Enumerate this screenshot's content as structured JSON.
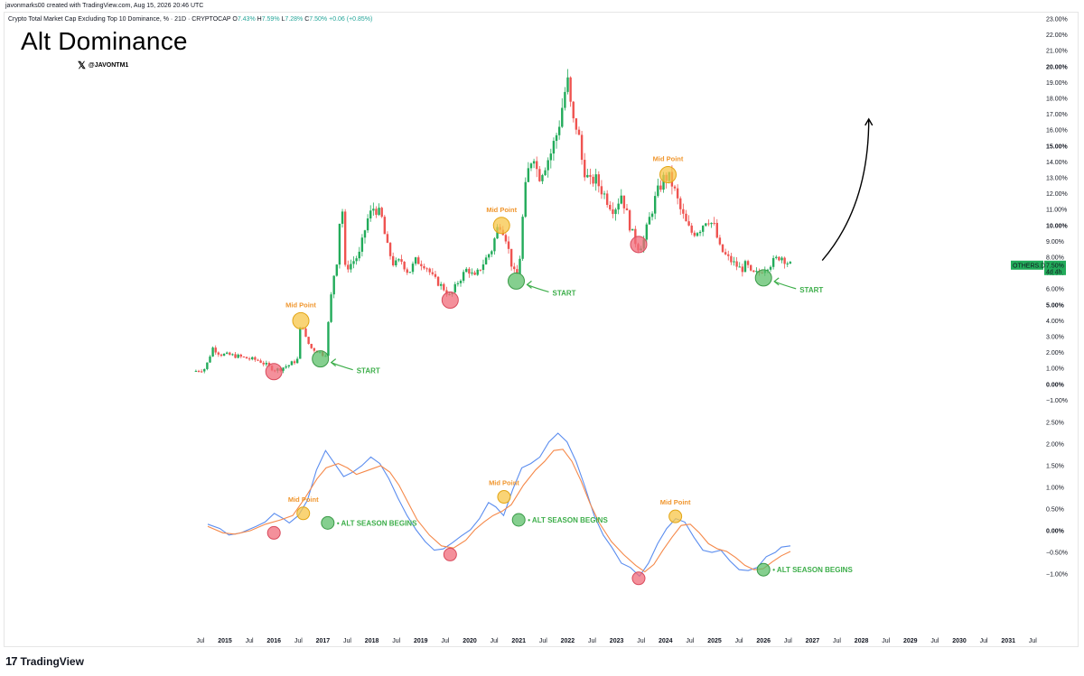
{
  "credit": "javonmarks00 created with TradingView.com, Aug 15, 2026 20:46 UTC",
  "symbol": {
    "name": "Crypto Total Market Cap Excluding Top 10 Dominance, % · 21D · CRYPTOCAP",
    "o_label": "O",
    "o": "7.43%",
    "h_label": "H",
    "h": "7.59%",
    "l_label": "L",
    "l": "7.28%",
    "c_label": "C",
    "c": "7.50%",
    "change": "+0.06 (+0.85%)"
  },
  "title": "Alt Dominance",
  "handle": "@JAVONTM1",
  "handle_icon": "x-logo-icon",
  "price_tag": {
    "symbol": "OTHERS.D",
    "value": "7.50%",
    "countdown": "4d 4h"
  },
  "footer": {
    "logo_mark": "17",
    "logo_text": "TradingView"
  },
  "colors": {
    "up": "#26a69a",
    "up_body": "#22ab5a",
    "down": "#ef5350",
    "fast_line": "#5b8def",
    "slow_line": "#f5894a",
    "mid_marker": "#f7c548",
    "low_marker": "#f06b7a",
    "start_marker": "#5cbf6a",
    "annotation_green": "#3dae4a",
    "annotation_orange": "#f0962e"
  },
  "chart_data": [
    {
      "type": "candlestick",
      "title": "Alt Dominance",
      "series_name": "OTHERS.D",
      "y_unit": "%",
      "ylim": [
        -1,
        23
      ],
      "y_ticks": [
        "23.00%",
        "22.00%",
        "21.00%",
        "20.00%",
        "19.00%",
        "18.00%",
        "17.00%",
        "16.00%",
        "15.00%",
        "14.00%",
        "13.00%",
        "12.00%",
        "11.00%",
        "10.00%",
        "9.00%",
        "8.00%",
        "7.00%",
        "6.00%",
        "5.00%",
        "4.00%",
        "3.00%",
        "2.00%",
        "1.00%",
        "0.00%",
        "−1.00%"
      ],
      "y_tick_values": [
        23,
        22,
        21,
        20,
        19,
        18,
        17,
        16,
        15,
        14,
        13,
        12,
        11,
        10,
        9,
        8,
        7,
        6,
        5,
        4,
        3,
        2,
        1,
        0,
        -1
      ],
      "y_bold_values": [
        20,
        15,
        10,
        5,
        0
      ],
      "x_ticks": [
        "Jul",
        "2015",
        "Jul",
        "2016",
        "Jul",
        "2017",
        "Jul",
        "2018",
        "Jul",
        "2019",
        "Jul",
        "2020",
        "Jul",
        "2021",
        "Jul",
        "2022",
        "Jul",
        "2023",
        "Jul",
        "2024",
        "Jul",
        "2025",
        "Jul",
        "2026",
        "Jul",
        "2027",
        "Jul",
        "2028",
        "Jul",
        "2029",
        "Jul",
        "2030",
        "Jul",
        "2031",
        "Jul"
      ],
      "x_tick_years": [
        2014.5,
        2015,
        2015.5,
        2016,
        2016.5,
        2017,
        2017.5,
        2018,
        2018.5,
        2019,
        2019.5,
        2020,
        2020.5,
        2021,
        2021.5,
        2022,
        2022.5,
        2023,
        2023.5,
        2024,
        2024.5,
        2025,
        2025.5,
        2026,
        2026.5,
        2027,
        2027.5,
        2028,
        2028.5,
        2029,
        2029.5,
        2030,
        2030.5,
        2031,
        2031.5
      ],
      "close_path": [
        [
          2014.35,
          0.8
        ],
        [
          2014.6,
          1.0
        ],
        [
          2014.75,
          2.3
        ],
        [
          2014.9,
          1.9
        ],
        [
          2015.2,
          1.8
        ],
        [
          2015.5,
          1.6
        ],
        [
          2015.7,
          1.5
        ],
        [
          2015.9,
          1.1
        ],
        [
          2016.05,
          0.9
        ],
        [
          2016.3,
          1.2
        ],
        [
          2016.5,
          1.6
        ],
        [
          2016.55,
          4.2
        ],
        [
          2016.65,
          2.9
        ],
        [
          2016.75,
          2.3
        ],
        [
          2016.95,
          2.0
        ],
        [
          2017.05,
          1.8
        ],
        [
          2017.1,
          3.5
        ],
        [
          2017.2,
          6.5
        ],
        [
          2017.3,
          8.0
        ],
        [
          2017.38,
          12.3
        ],
        [
          2017.45,
          7.3
        ],
        [
          2017.55,
          7.5
        ],
        [
          2017.75,
          8.2
        ],
        [
          2017.9,
          10.3
        ],
        [
          2018.05,
          11.2
        ],
        [
          2018.2,
          10.5
        ],
        [
          2018.3,
          8.8
        ],
        [
          2018.45,
          7.5
        ],
        [
          2018.6,
          7.8
        ],
        [
          2018.75,
          7.0
        ],
        [
          2018.9,
          7.8
        ],
        [
          2019.1,
          7.5
        ],
        [
          2019.25,
          6.7
        ],
        [
          2019.45,
          6.1
        ],
        [
          2019.6,
          5.5
        ],
        [
          2019.75,
          6.4
        ],
        [
          2019.95,
          7.3
        ],
        [
          2020.1,
          6.7
        ],
        [
          2020.25,
          7.5
        ],
        [
          2020.45,
          8.5
        ],
        [
          2020.6,
          10.2
        ],
        [
          2020.72,
          9.5
        ],
        [
          2020.85,
          7.6
        ],
        [
          2020.95,
          6.6
        ],
        [
          2021.05,
          8.5
        ],
        [
          2021.1,
          11.6
        ],
        [
          2021.2,
          13.5
        ],
        [
          2021.3,
          14.7
        ],
        [
          2021.4,
          13.0
        ],
        [
          2021.5,
          13.6
        ],
        [
          2021.65,
          14.5
        ],
        [
          2021.8,
          16.0
        ],
        [
          2021.95,
          18.5
        ],
        [
          2022.0,
          19.0
        ],
        [
          2022.1,
          16.5
        ],
        [
          2022.2,
          16.2
        ],
        [
          2022.3,
          13.9
        ],
        [
          2022.45,
          12.6
        ],
        [
          2022.55,
          13.0
        ],
        [
          2022.7,
          12.2
        ],
        [
          2022.85,
          11.4
        ],
        [
          2022.95,
          11.0
        ],
        [
          2023.1,
          12.0
        ],
        [
          2023.25,
          10.2
        ],
        [
          2023.35,
          9.2
        ],
        [
          2023.45,
          8.6
        ],
        [
          2023.55,
          9.0
        ],
        [
          2023.65,
          10.2
        ],
        [
          2023.8,
          11.8
        ],
        [
          2023.95,
          12.9
        ],
        [
          2024.05,
          13.1
        ],
        [
          2024.15,
          12.5
        ],
        [
          2024.3,
          11.0
        ],
        [
          2024.45,
          9.9
        ],
        [
          2024.55,
          9.5
        ],
        [
          2024.7,
          9.8
        ],
        [
          2024.85,
          10.5
        ],
        [
          2025.0,
          9.9
        ],
        [
          2025.1,
          8.6
        ],
        [
          2025.25,
          8.0
        ],
        [
          2025.4,
          7.6
        ],
        [
          2025.55,
          7.2
        ],
        [
          2025.65,
          7.6
        ],
        [
          2025.75,
          6.9
        ],
        [
          2025.9,
          7.0
        ],
        [
          2026.0,
          7.3
        ],
        [
          2026.15,
          7.6
        ],
        [
          2026.35,
          8.1
        ],
        [
          2026.45,
          7.8
        ],
        [
          2026.55,
          7.5
        ]
      ],
      "markers": [
        {
          "kind": "low",
          "x": 2016.0,
          "y": 0.8
        },
        {
          "kind": "mid",
          "x": 2016.55,
          "y": 4.0
        },
        {
          "kind": "start",
          "x": 2016.95,
          "y": 1.6
        },
        {
          "kind": "low",
          "x": 2019.6,
          "y": 5.3
        },
        {
          "kind": "mid",
          "x": 2020.65,
          "y": 10.0
        },
        {
          "kind": "start",
          "x": 2020.95,
          "y": 6.5
        },
        {
          "kind": "low",
          "x": 2023.45,
          "y": 8.8
        },
        {
          "kind": "mid",
          "x": 2024.05,
          "y": 13.2
        },
        {
          "kind": "start",
          "x": 2026.0,
          "y": 6.7
        }
      ],
      "labels": {
        "mid": "Mid Point",
        "start": "START"
      },
      "arrow": {
        "from": [
          2027.2,
          7.8
        ],
        "to": [
          2028.15,
          16.7
        ]
      }
    },
    {
      "type": "line",
      "series": [
        {
          "name": "fast",
          "values": [
            [
              2014.65,
              0.15
            ],
            [
              2014.85,
              0.05
            ],
            [
              2015.0,
              -0.1
            ],
            [
              2015.2,
              -0.05
            ],
            [
              2015.45,
              0.1
            ],
            [
              2015.6,
              0.2
            ],
            [
              2015.75,
              0.4
            ],
            [
              2015.9,
              0.28
            ],
            [
              2016.0,
              0.18
            ],
            [
              2016.15,
              0.35
            ],
            [
              2016.3,
              0.7
            ],
            [
              2016.45,
              1.4
            ],
            [
              2016.6,
              1.85
            ],
            [
              2016.75,
              1.55
            ],
            [
              2016.9,
              1.25
            ],
            [
              2017.05,
              1.35
            ],
            [
              2017.2,
              1.5
            ],
            [
              2017.35,
              1.7
            ],
            [
              2017.5,
              1.55
            ],
            [
              2017.65,
              1.2
            ],
            [
              2017.8,
              0.75
            ],
            [
              2017.95,
              0.35
            ],
            [
              2018.1,
              0.02
            ],
            [
              2018.25,
              -0.25
            ],
            [
              2018.4,
              -0.45
            ],
            [
              2018.55,
              -0.42
            ],
            [
              2018.7,
              -0.28
            ],
            [
              2018.85,
              -0.12
            ],
            [
              2019.0,
              0.02
            ],
            [
              2019.15,
              0.28
            ],
            [
              2019.3,
              0.65
            ],
            [
              2019.42,
              0.55
            ],
            [
              2019.55,
              0.35
            ],
            [
              2019.7,
              0.95
            ],
            [
              2019.85,
              1.45
            ],
            [
              2020.0,
              1.55
            ],
            [
              2020.15,
              1.7
            ],
            [
              2020.3,
              2.05
            ],
            [
              2020.45,
              2.25
            ],
            [
              2020.6,
              2.05
            ],
            [
              2020.75,
              1.6
            ],
            [
              2020.9,
              1.0
            ],
            [
              2021.05,
              0.35
            ],
            [
              2021.2,
              -0.1
            ],
            [
              2021.35,
              -0.4
            ],
            [
              2021.5,
              -0.75
            ],
            [
              2021.65,
              -0.85
            ],
            [
              2021.8,
              -1.05
            ],
            [
              2021.95,
              -0.75
            ],
            [
              2022.1,
              -0.3
            ],
            [
              2022.25,
              0.05
            ],
            [
              2022.4,
              0.28
            ],
            [
              2022.55,
              0.2
            ],
            [
              2022.7,
              -0.15
            ],
            [
              2022.85,
              -0.45
            ],
            [
              2023.0,
              -0.5
            ],
            [
              2023.15,
              -0.45
            ],
            [
              2023.3,
              -0.7
            ],
            [
              2023.45,
              -0.9
            ],
            [
              2023.6,
              -0.92
            ],
            [
              2023.75,
              -0.85
            ],
            [
              2023.9,
              -0.6
            ],
            [
              2024.05,
              -0.5
            ],
            [
              2024.15,
              -0.38
            ],
            [
              2024.3,
              -0.35
            ]
          ]
        },
        {
          "name": "slow",
          "values": [
            [
              2014.65,
              0.1
            ],
            [
              2014.9,
              -0.05
            ],
            [
              2015.1,
              -0.08
            ],
            [
              2015.35,
              0.0
            ],
            [
              2015.6,
              0.15
            ],
            [
              2015.85,
              0.25
            ],
            [
              2016.05,
              0.35
            ],
            [
              2016.25,
              0.75
            ],
            [
              2016.45,
              1.2
            ],
            [
              2016.6,
              1.45
            ],
            [
              2016.8,
              1.55
            ],
            [
              2016.95,
              1.45
            ],
            [
              2017.1,
              1.3
            ],
            [
              2017.3,
              1.4
            ],
            [
              2017.5,
              1.5
            ],
            [
              2017.65,
              1.35
            ],
            [
              2017.8,
              1.05
            ],
            [
              2017.95,
              0.65
            ],
            [
              2018.1,
              0.25
            ],
            [
              2018.3,
              -0.1
            ],
            [
              2018.5,
              -0.35
            ],
            [
              2018.7,
              -0.4
            ],
            [
              2018.9,
              -0.22
            ],
            [
              2019.05,
              0.02
            ],
            [
              2019.2,
              0.2
            ],
            [
              2019.35,
              0.35
            ],
            [
              2019.5,
              0.45
            ],
            [
              2019.65,
              0.6
            ],
            [
              2019.85,
              1.05
            ],
            [
              2020.05,
              1.4
            ],
            [
              2020.2,
              1.6
            ],
            [
              2020.35,
              1.85
            ],
            [
              2020.5,
              1.88
            ],
            [
              2020.65,
              1.6
            ],
            [
              2020.8,
              1.15
            ],
            [
              2020.95,
              0.62
            ],
            [
              2021.1,
              0.18
            ],
            [
              2021.3,
              -0.25
            ],
            [
              2021.5,
              -0.55
            ],
            [
              2021.7,
              -0.8
            ],
            [
              2021.85,
              -0.95
            ],
            [
              2022.0,
              -0.78
            ],
            [
              2022.15,
              -0.45
            ],
            [
              2022.3,
              -0.15
            ],
            [
              2022.45,
              0.12
            ],
            [
              2022.6,
              0.15
            ],
            [
              2022.75,
              -0.05
            ],
            [
              2022.9,
              -0.3
            ],
            [
              2023.05,
              -0.42
            ],
            [
              2023.2,
              -0.48
            ],
            [
              2023.35,
              -0.62
            ],
            [
              2023.5,
              -0.8
            ],
            [
              2023.65,
              -0.9
            ],
            [
              2023.8,
              -0.88
            ],
            [
              2023.95,
              -0.72
            ],
            [
              2024.1,
              -0.58
            ],
            [
              2024.25,
              -0.48
            ]
          ]
        }
      ],
      "ylim": [
        -1.7,
        2.6
      ],
      "y_ticks": [
        "2.50%",
        "2.00%",
        "1.50%",
        "1.00%",
        "0.50%",
        "0.00%",
        "−0.50%",
        "−1.00%"
      ],
      "y_tick_values": [
        2.5,
        2.0,
        1.5,
        1.0,
        0.5,
        0.0,
        -0.5,
        -1.0
      ],
      "y_bold_values": [
        0.0
      ],
      "markers": [
        {
          "kind": "low",
          "x": 2016.0,
          "y": -0.05
        },
        {
          "kind": "mid",
          "x": 2016.6,
          "y": 0.4
        },
        {
          "kind": "start",
          "x": 2017.1,
          "y": 0.18
        },
        {
          "kind": "low",
          "x": 2019.6,
          "y": -0.55
        },
        {
          "kind": "mid",
          "x": 2020.7,
          "y": 0.78
        },
        {
          "kind": "start",
          "x": 2021.0,
          "y": 0.25
        },
        {
          "kind": "low",
          "x": 2023.45,
          "y": -1.1
        },
        {
          "kind": "mid",
          "x": 2024.2,
          "y": 0.33
        },
        {
          "kind": "start",
          "x": 2026.0,
          "y": -0.9
        }
      ],
      "labels": {
        "mid": "Mid Point",
        "start": "• ALT SEASON BEGINS"
      }
    }
  ]
}
